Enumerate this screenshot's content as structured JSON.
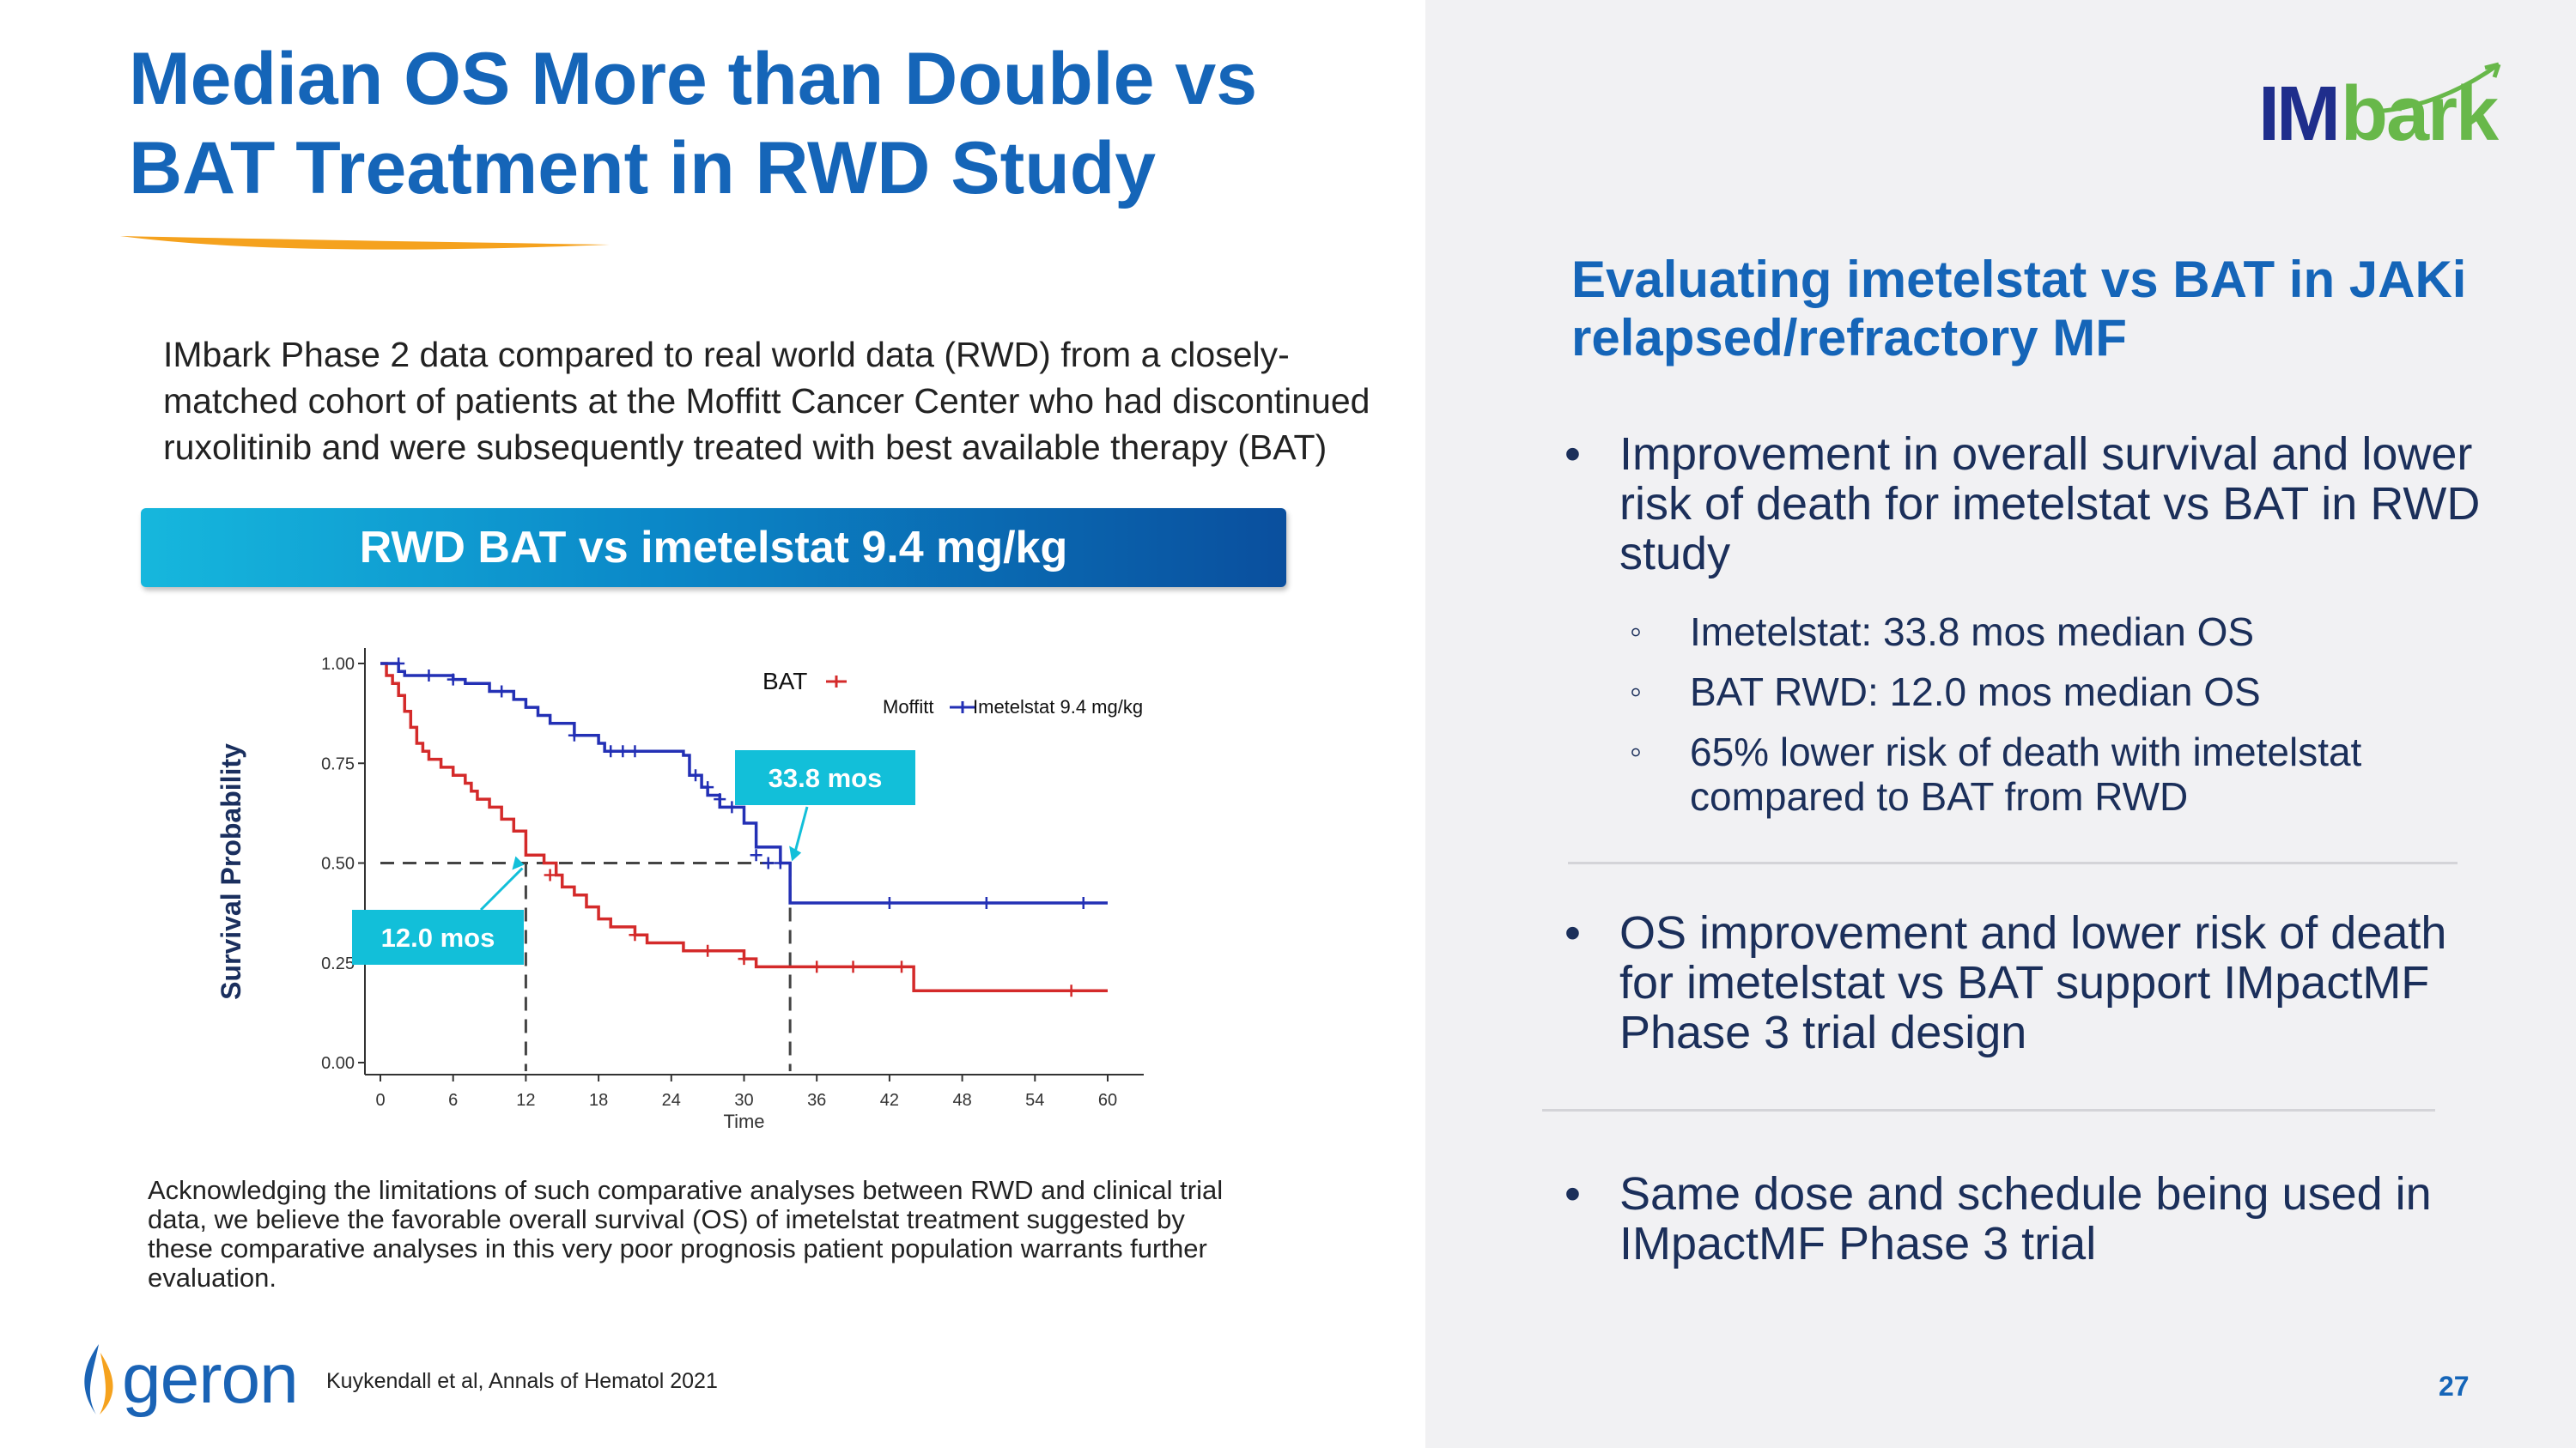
{
  "title": {
    "line1": "Median OS More than Double vs",
    "line2": "BAT Treatment in RWD Study"
  },
  "logo": {
    "part1": "IM",
    "part2": "bark"
  },
  "intro": "IMbark Phase 2 data compared to real world data (RWD) from a closely-matched cohort of patients at the Moffitt Cancer Center who had discontinued ruxolitinib and were subsequently treated with best available therapy (BAT)",
  "banner": "RWD BAT vs imetelstat 9.4 mg/kg",
  "acknowledgment": "Acknowledging the limitations of such comparative analyses between RWD and clinical trial data, we believe the favorable overall survival (OS) of imetelstat treatment suggested by these comparative analyses in this very poor prognosis patient population warrants further evaluation.",
  "footer": {
    "brand": "geron",
    "citation": "Kuykendall et al, Annals of Hematol 2021",
    "page": "27"
  },
  "right": {
    "heading": "Evaluating imetelstat vs BAT in JAKi relapsed/refractory MF",
    "bullet1": "Improvement in overall survival and lower risk of death for imetelstat vs BAT in RWD study",
    "sub1": "Imetelstat: 33.8 mos median OS",
    "sub2": "BAT RWD: 12.0 mos median OS",
    "sub3": "65% lower risk of death with imetelstat compared to BAT from RWD",
    "bullet2": "OS improvement and lower risk of death for imetelstat vs BAT support IMpactMF Phase 3 trial design",
    "bullet3": "Same dose and schedule being used in IMpactMF Phase 3 trial",
    "bullet_symbol": "•",
    "sub_symbol": "◦"
  },
  "colors": {
    "title": "#1565b8",
    "bat": "#d42a2a",
    "imetelstat": "#2330b5",
    "callout": "#12bfd9",
    "logo_green": "#68b84a"
  },
  "chart_data": {
    "type": "line",
    "xlabel": "Time",
    "ylabel": "Survival Probability",
    "xlim": [
      0,
      60
    ],
    "ylim": [
      0,
      1
    ],
    "xticks": [
      "0",
      "6",
      "12",
      "18",
      "24",
      "30",
      "36",
      "42",
      "48",
      "54",
      "60"
    ],
    "yticks": [
      "0.00",
      "0.25",
      "0.50",
      "0.75",
      "1.00"
    ],
    "legend": {
      "bat_label": "BAT",
      "bat_sub": "Moffitt",
      "imet_label": "Imetelstat 9.4 mg/kg"
    },
    "annotations": {
      "imet_median": "33.8 mos",
      "bat_median": "12.0 mos"
    },
    "medians": {
      "bat": 12.0,
      "imetelstat": 33.8,
      "y": 0.5
    },
    "series": [
      {
        "name": "BAT",
        "x": [
          0,
          0.5,
          1,
          1.5,
          2,
          2.5,
          3,
          3.5,
          4,
          5,
          6,
          7,
          7.5,
          8,
          9,
          10,
          11,
          12,
          13.5,
          14.5,
          15,
          16,
          17,
          18,
          19,
          21,
          22,
          24,
          25,
          29,
          30,
          31,
          33,
          35,
          37,
          42,
          44,
          60
        ],
        "y": [
          1.0,
          0.97,
          0.95,
          0.92,
          0.88,
          0.84,
          0.8,
          0.78,
          0.76,
          0.74,
          0.72,
          0.7,
          0.68,
          0.66,
          0.64,
          0.61,
          0.58,
          0.52,
          0.5,
          0.47,
          0.44,
          0.42,
          0.39,
          0.36,
          0.34,
          0.32,
          0.3,
          0.3,
          0.28,
          0.28,
          0.26,
          0.24,
          0.24,
          0.24,
          0.24,
          0.24,
          0.18,
          0.18
        ]
      },
      {
        "name": "Imetelstat 9.4 mg/kg",
        "x": [
          0,
          1,
          1.5,
          2,
          4,
          6,
          7,
          9,
          11,
          12,
          13,
          14,
          16,
          18,
          18.5,
          22,
          25,
          25.5,
          26.5,
          27,
          28,
          30,
          31,
          33,
          33.8,
          40,
          50,
          60
        ],
        "y": [
          1.0,
          1.0,
          0.98,
          0.97,
          0.97,
          0.96,
          0.95,
          0.93,
          0.91,
          0.89,
          0.87,
          0.85,
          0.82,
          0.8,
          0.78,
          0.78,
          0.77,
          0.72,
          0.69,
          0.67,
          0.64,
          0.6,
          0.54,
          0.5,
          0.4,
          0.4,
          0.4,
          0.4
        ]
      }
    ],
    "censor_bat": [
      [
        14,
        0.47
      ],
      [
        21,
        0.32
      ],
      [
        27,
        0.28
      ],
      [
        30,
        0.26
      ],
      [
        36,
        0.24
      ],
      [
        39,
        0.24
      ],
      [
        43,
        0.24
      ],
      [
        57,
        0.18
      ]
    ],
    "censor_imet": [
      [
        1.5,
        1.0
      ],
      [
        4,
        0.97
      ],
      [
        6,
        0.96
      ],
      [
        10,
        0.93
      ],
      [
        16,
        0.82
      ],
      [
        19,
        0.78
      ],
      [
        20,
        0.78
      ],
      [
        21,
        0.78
      ],
      [
        26,
        0.72
      ],
      [
        27,
        0.69
      ],
      [
        28,
        0.66
      ],
      [
        29,
        0.64
      ],
      [
        31,
        0.52
      ],
      [
        32,
        0.5
      ],
      [
        33,
        0.5
      ],
      [
        42,
        0.4
      ],
      [
        50,
        0.4
      ],
      [
        58,
        0.4
      ]
    ]
  }
}
